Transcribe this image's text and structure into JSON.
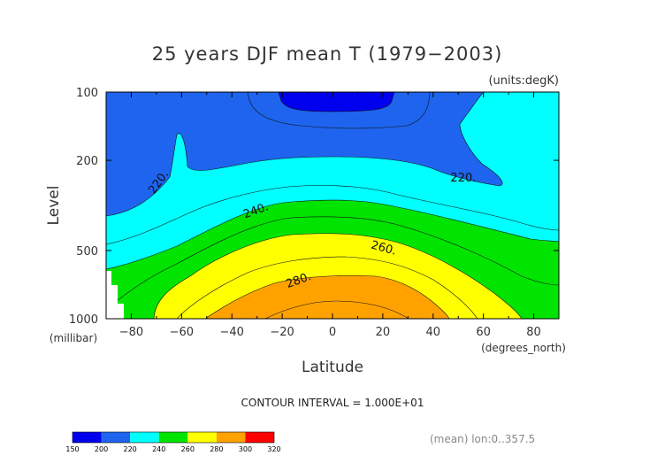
{
  "chart_data": {
    "type": "contour",
    "title": "25 years DJF mean T (1979−2003)",
    "units_label": "(units:degK)",
    "xlabel": "Latitude",
    "x_units": "(degrees_north)",
    "ylabel": "Level",
    "y_units": "(millibar)",
    "x_ticks": [
      "−80",
      "−60",
      "−40",
      "−20",
      "0",
      "20",
      "40",
      "60",
      "80"
    ],
    "x_tick_values": [
      -80,
      -60,
      -40,
      -20,
      0,
      20,
      40,
      60,
      80
    ],
    "y_ticks": [
      "100",
      "200",
      "500",
      "1000"
    ],
    "y_tick_values": [
      100,
      200,
      500,
      1000
    ],
    "xlim": [
      -90,
      90
    ],
    "ylim": [
      1000,
      100
    ],
    "y_scale": "log",
    "contour_interval_text": "CONTOUR INTERVAL = 1.000E+01",
    "contour_labels": [
      {
        "text": "220.",
        "x": -68,
        "p": 255
      },
      {
        "text": "220.",
        "x": 52,
        "p": 248
      },
      {
        "text": "240.",
        "x": -30,
        "p": 345
      },
      {
        "text": "260.",
        "x": 20,
        "p": 505
      },
      {
        "text": "280.",
        "x": -13,
        "p": 700
      }
    ],
    "levels": [
      150,
      200,
      220,
      240,
      260,
      280,
      300,
      320
    ],
    "colorbar_labels": [
      "150",
      "200",
      "220",
      "240",
      "260",
      "280",
      "300",
      "320"
    ],
    "colors": [
      "#0000ee",
      "#1e64ee",
      "#00ffff",
      "#00e400",
      "#ffff00",
      "#ffa200",
      "#ff0000"
    ],
    "footer": "(mean) lon:0..357.5"
  }
}
